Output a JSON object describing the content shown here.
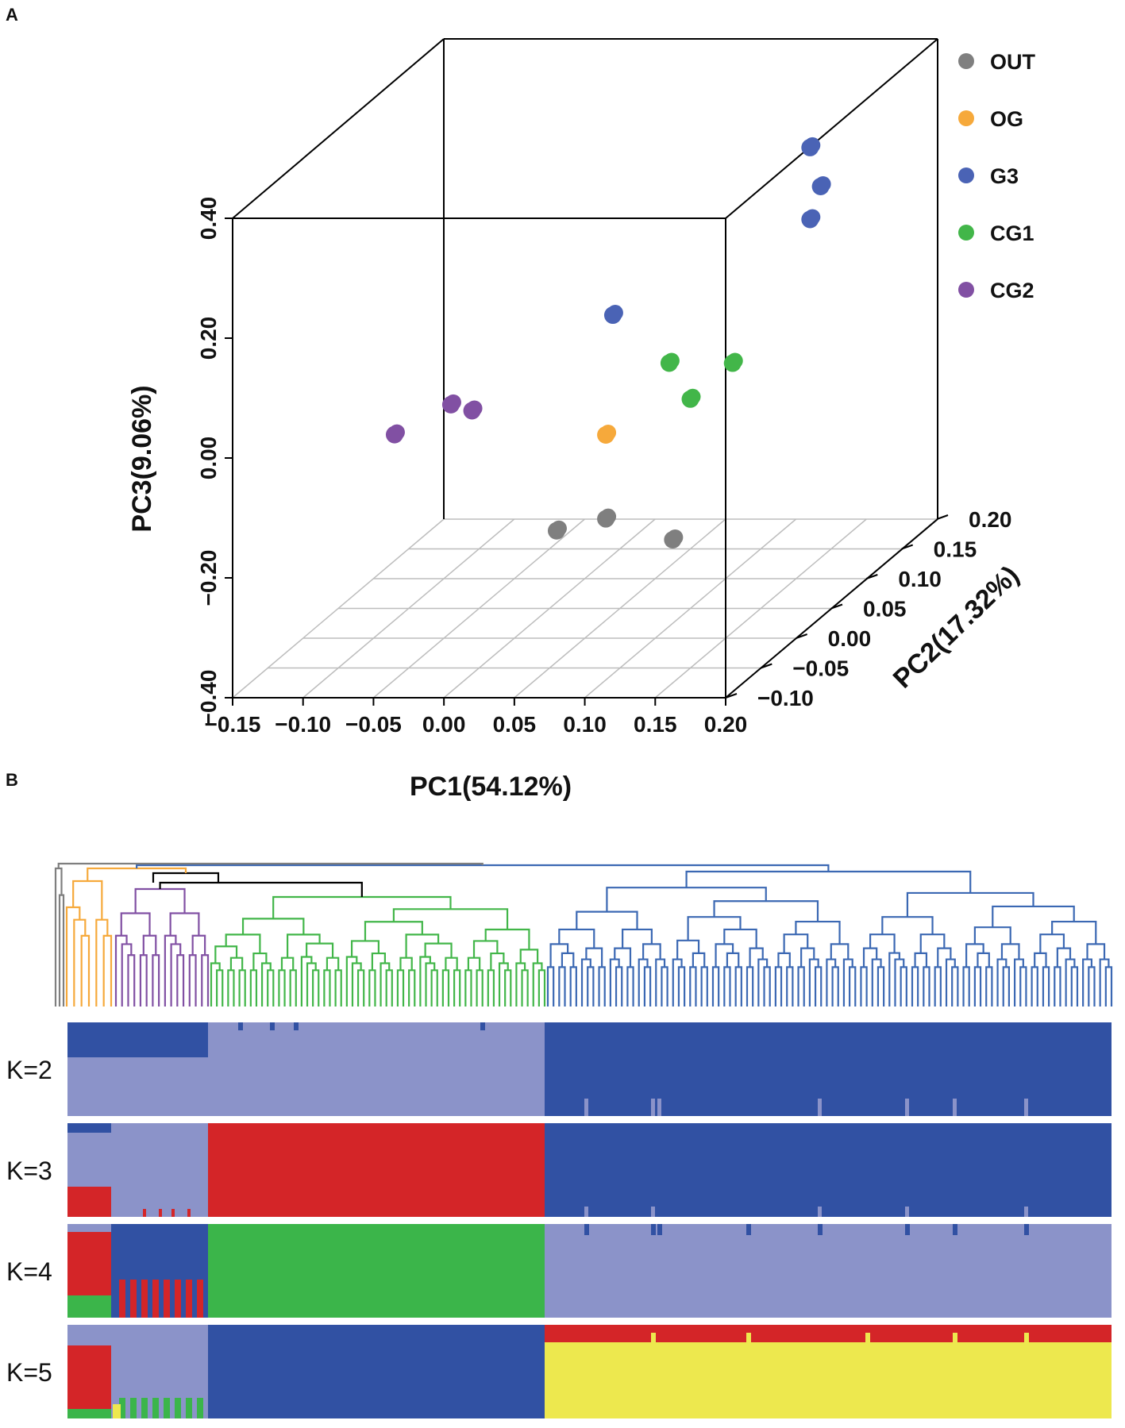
{
  "chart_data": [
    {
      "type": "scatter",
      "panel_label": "A",
      "xlabel": "PC1(54.12%)",
      "ylabel": "PC3(9.06%)",
      "zlabel": "PC2(17.32%)",
      "x_ticks": [
        "−0.15",
        "−0.10",
        "−0.05",
        "0.00",
        "0.05",
        "0.10",
        "0.15",
        "0.20"
      ],
      "y_ticks": [
        "−0.40",
        "−0.20",
        "0.00",
        "0.20",
        "0.40"
      ],
      "z_ticks": [
        "−0.10",
        "−0.05",
        "0.00",
        "0.05",
        "0.10",
        "0.15",
        "0.20"
      ],
      "xlim": [
        -0.15,
        0.2
      ],
      "ylim": [
        -0.4,
        0.4
      ],
      "zlim": [
        -0.1,
        0.2
      ],
      "legend": [
        {
          "name": "OUT",
          "color": "#7f7f7f"
        },
        {
          "name": "OG",
          "color": "#f6a93b"
        },
        {
          "name": "G3",
          "color": "#4a63b5"
        },
        {
          "name": "CG1",
          "color": "#42b649"
        },
        {
          "name": "CG2",
          "color": "#8150a3"
        }
      ],
      "series": [
        {
          "name": "OUT",
          "points": [
            [
              -0.03,
              -0.34,
              0.12
            ],
            [
              0.0,
              -0.33,
              0.13
            ],
            [
              0.055,
              -0.35,
              0.115
            ]
          ]
        },
        {
          "name": "OG",
          "points": [
            [
              0.0,
              -0.19,
              0.13
            ]
          ]
        },
        {
          "name": "G3",
          "points": [
            [
              0.11,
              0.22,
              0.2
            ],
            [
              0.12,
              0.16,
              0.195
            ],
            [
              0.115,
              0.11,
              0.19
            ],
            [
              -0.005,
              -0.01,
              0.15
            ]
          ]
        },
        {
          "name": "CG1",
          "points": [
            [
              0.035,
              -0.09,
              0.15
            ],
            [
              0.07,
              -0.11,
              0.17
            ],
            [
              0.045,
              -0.16,
              0.16
            ]
          ]
        },
        {
          "name": "CG2",
          "points": [
            [
              -0.115,
              -0.12,
              0.06
            ],
            [
              -0.065,
              -0.09,
              0.07
            ],
            [
              -0.075,
              -0.07,
              0.06
            ]
          ]
        }
      ]
    },
    {
      "type": "heatmap",
      "panel_label": "B",
      "description_of": "dendrogram with admixture bar plots",
      "k_labels": [
        "K=2",
        "K=3",
        "K=4",
        "K=5"
      ],
      "clusters": [
        {
          "name": "OUT",
          "color": "#7f7f7f",
          "samples": 3
        },
        {
          "name": "OG",
          "color": "#f6a93b",
          "samples": 7
        },
        {
          "name": "CG2",
          "color": "#8150a3",
          "samples": 16
        },
        {
          "name": "CG1",
          "color": "#42b649",
          "samples": 60
        },
        {
          "name": "G3",
          "color": "#3b68b3",
          "samples": 100
        }
      ],
      "palette": {
        "dark_blue": "#3151a3",
        "light_blue": "#8b93c9",
        "red": "#d42528",
        "green": "#3bb54a",
        "yellow": "#ede84e"
      }
    }
  ]
}
